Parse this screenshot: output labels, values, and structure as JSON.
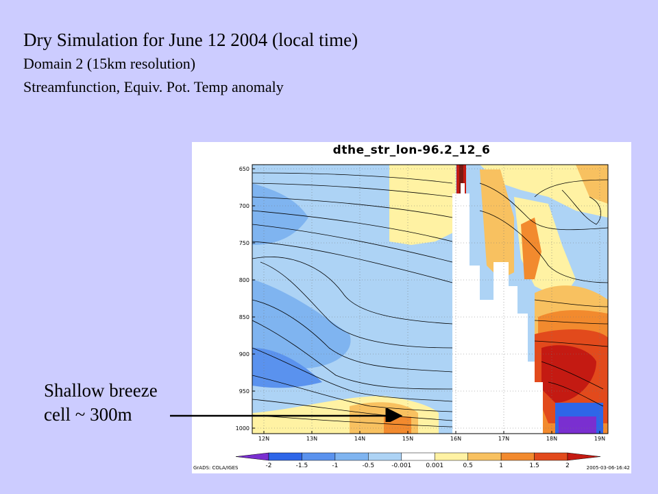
{
  "slide": {
    "title": "Dry Simulation for June 12 2004 (local time)",
    "line2": "Domain 2 (15km resolution)",
    "line3": "Streamfunction, Equiv. Pot. Temp anomaly",
    "annotation_line1": "Shallow breeze",
    "annotation_line2": "cell ~ 300m"
  },
  "figure": {
    "title": "dthe_str_lon-96.2_12_6",
    "footer_left": "GrADS: COLA/IGES",
    "footer_right": "2005-03-06-16:42"
  },
  "chart_data": {
    "type": "heatmap",
    "title": "dthe_str_lon-96.2_12_6",
    "x_ticks": [
      "12N",
      "13N",
      "14N",
      "15N",
      "16N",
      "17N",
      "18N",
      "19N"
    ],
    "y_ticks": [
      "650",
      "700",
      "750",
      "800",
      "850",
      "900",
      "950",
      "1000"
    ],
    "y_inverted": true,
    "colorbar_labels": [
      "-2",
      "-1.5",
      "-1",
      "-0.5",
      "-0.001",
      "0.001",
      "0.5",
      "1",
      "1.5",
      "2"
    ],
    "colorbar_colors": [
      "#7A2FD0",
      "#2E66E8",
      "#5A92EE",
      "#7FB4F0",
      "#ADD3F5",
      "#FFFFFF",
      "#FFF2A3",
      "#F8C160",
      "#F28A2E",
      "#E24A1C",
      "#C41A12"
    ],
    "grid": true
  },
  "colors": {
    "background": "#CCCCFF",
    "land_mask": "#FFFFFF"
  }
}
